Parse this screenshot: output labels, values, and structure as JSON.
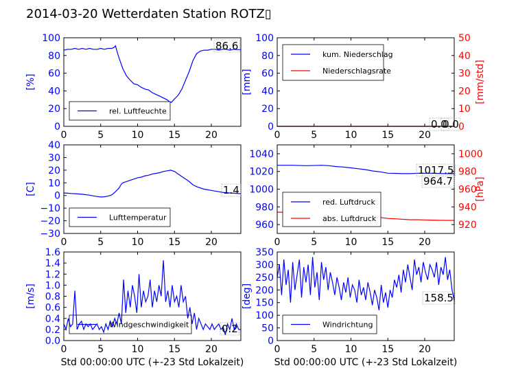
{
  "page": {
    "title": "2014-03-20 Wetterdaten Station ROTZ▯"
  },
  "colors": {
    "blue": "#0000ff",
    "red": "#ff0000",
    "lightblue": "#8080ff",
    "black": "#000000"
  },
  "chart_data": [
    {
      "type": "line",
      "xlabel": "",
      "ylabel": "[%]",
      "xlim": [
        0,
        24
      ],
      "ylim": [
        0,
        100
      ],
      "xticks": [
        "0",
        "5",
        "10",
        "15",
        "20"
      ],
      "yticks": [
        "0",
        "20",
        "40",
        "60",
        "80",
        "100"
      ],
      "legend": {
        "placement": "lower-left",
        "entries": [
          "rel. Luftfeuchte"
        ]
      },
      "last_values": [
        "86.6"
      ],
      "series": [
        {
          "name": "rel. Luftfeuchte",
          "x": [
            0,
            0.5,
            1,
            1.5,
            2,
            2.5,
            3,
            3.5,
            4,
            4.5,
            5,
            5.5,
            6,
            6.5,
            6.8,
            7,
            7.2,
            7.5,
            8,
            8.5,
            9,
            9.5,
            10,
            10.5,
            11,
            11.5,
            12,
            12.5,
            13,
            13.5,
            14,
            14.3,
            14.6,
            15,
            15.5,
            16,
            16.5,
            17,
            17.5,
            18,
            18.5,
            19,
            19.5,
            20,
            20.5,
            21,
            21.5,
            22,
            22.5,
            23,
            23.5,
            24
          ],
          "y": [
            86,
            87,
            87,
            88,
            87,
            88,
            87,
            88,
            87,
            87,
            88,
            87,
            88,
            88,
            89,
            91,
            85,
            77,
            65,
            57,
            52,
            48,
            47,
            44,
            42,
            41,
            38,
            36,
            34,
            32,
            30,
            28,
            27,
            31,
            35,
            42,
            52,
            62,
            74,
            82,
            85,
            86,
            86,
            87,
            87,
            86,
            87,
            87,
            86,
            87,
            86.6,
            86.6
          ]
        }
      ]
    },
    {
      "type": "line",
      "xlabel": "",
      "ylabel": "[mm]",
      "ylabel_right": "[mm/std]",
      "xlim": [
        0,
        24
      ],
      "ylim": [
        0,
        100
      ],
      "ylim_right": [
        0,
        50
      ],
      "xticks": [
        "0",
        "5",
        "10",
        "15",
        "20"
      ],
      "yticks": [
        "0",
        "20",
        "40",
        "60",
        "80",
        "100"
      ],
      "yticks_right": [
        "0",
        "10",
        "20",
        "30",
        "40",
        "50"
      ],
      "legend": {
        "placement": "upper-left",
        "entries": [
          "kum. Niederschlag",
          "Niederschlagsrate"
        ]
      },
      "last_values": [
        "0.0",
        "0.0"
      ],
      "series": [
        {
          "name": "kum. Niederschlag",
          "x": [
            0,
            24
          ],
          "y": [
            0,
            0
          ]
        },
        {
          "name": "Niederschlagsrate",
          "x": [
            0,
            24
          ],
          "y": [
            0,
            0
          ]
        }
      ]
    },
    {
      "type": "line",
      "xlabel": "",
      "ylabel": "[C]",
      "xlim": [
        0,
        24
      ],
      "ylim": [
        -30,
        40
      ],
      "xticks": [
        "0",
        "5",
        "10",
        "15",
        "20"
      ],
      "yticks": [
        "−30",
        "−20",
        "−10",
        "0",
        "10",
        "20",
        "30",
        "40"
      ],
      "legend": {
        "placement": "lower-left",
        "entries": [
          "Lufttemperatur"
        ]
      },
      "last_values": [
        "1.4"
      ],
      "series": [
        {
          "name": "Lufttemperatur",
          "x": [
            0,
            0.5,
            1,
            1.5,
            2,
            2.5,
            3,
            3.5,
            4,
            4.5,
            5,
            5.5,
            6,
            6.5,
            7,
            7.5,
            7.8,
            8,
            8.5,
            9,
            9.5,
            10,
            10.5,
            11,
            11.5,
            12,
            12.5,
            13,
            13.5,
            14,
            14.5,
            15,
            15.5,
            16,
            16.5,
            17,
            17.5,
            18,
            18.5,
            19,
            19.5,
            20,
            20.5,
            21,
            21.5,
            22,
            22.5,
            23,
            23.5,
            24
          ],
          "y": [
            2,
            1.8,
            1.6,
            1.4,
            1.2,
            1,
            0.6,
            0.2,
            -0.3,
            -0.8,
            -1.2,
            -1,
            -0.5,
            0.5,
            3,
            6,
            9,
            10,
            11,
            12,
            13,
            14,
            14.5,
            15.5,
            16,
            17,
            17.5,
            18,
            19,
            19.5,
            20,
            19,
            17,
            15,
            13,
            11,
            8.5,
            7,
            6,
            5,
            4.5,
            4,
            3.5,
            3,
            2.5,
            2.2,
            2,
            1.8,
            1.6,
            1.4
          ]
        }
      ]
    },
    {
      "type": "line",
      "xlabel": "",
      "ylabel": "",
      "ylabel_right": "[hPa]",
      "xlim": [
        0,
        24
      ],
      "ylim": [
        950,
        1050
      ],
      "ylim_right": [
        910,
        1010
      ],
      "xticks": [
        "0",
        "5",
        "10",
        "15",
        "20"
      ],
      "yticks": [
        "960",
        "980",
        "1000",
        "1020",
        "1040"
      ],
      "yticks_right": [
        "920",
        "940",
        "960",
        "980",
        "1000"
      ],
      "legend": {
        "placement": "lower-left",
        "entries": [
          "red. Luftdruck",
          "abs. Luftdruck"
        ]
      },
      "last_values": [
        "1017.5",
        "964.7"
      ],
      "series": [
        {
          "name": "red. Luftdruck",
          "x": [
            0,
            2,
            4,
            6,
            7,
            8,
            9,
            10,
            11,
            12,
            13,
            14,
            15,
            16,
            17,
            18,
            19,
            20,
            21,
            22,
            23,
            24
          ],
          "y": [
            1027,
            1027,
            1026.5,
            1027,
            1026.5,
            1025.5,
            1025,
            1024,
            1023,
            1022,
            1020.5,
            1019.5,
            1018,
            1017.8,
            1017.5,
            1017.5,
            1018,
            1018,
            1018,
            1017.7,
            1017.5,
            1017.5
          ]
        },
        {
          "name": "abs. Luftdruck",
          "x": [
            0,
            2,
            4,
            6,
            7,
            8,
            9,
            10,
            11,
            12,
            13,
            14,
            15,
            16,
            17,
            18,
            19,
            20,
            21,
            22,
            23,
            24
          ],
          "y": [
            974,
            973.8,
            973.5,
            973.5,
            973.2,
            972.8,
            972.5,
            972,
            971,
            970,
            969,
            968,
            967,
            966.5,
            966,
            965.5,
            965.5,
            965.3,
            965,
            964.8,
            964.7,
            964.7
          ]
        }
      ]
    },
    {
      "type": "line",
      "xlabel": "Std 00:00:00 UTC (+-23 Std Lokalzeit)",
      "ylabel": "[m/s]",
      "xlim": [
        0,
        24
      ],
      "ylim": [
        0,
        1.6
      ],
      "xticks": [
        "0",
        "5",
        "10",
        "15",
        "20"
      ],
      "yticks": [
        "0.0",
        "0.2",
        "0.4",
        "0.6",
        "0.8",
        "1.0",
        "1.2",
        "1.4",
        "1.6"
      ],
      "legend": {
        "placement": "lower-left",
        "entries": [
          "Windgeschwindigkeit"
        ]
      },
      "last_values": [
        "0.2"
      ],
      "series": [
        {
          "name": "Windgeschwindigkeit",
          "x": [
            0,
            0.3,
            0.6,
            0.9,
            1.2,
            1.5,
            1.8,
            2.1,
            2.4,
            2.7,
            3,
            3.3,
            3.6,
            3.9,
            4.2,
            4.5,
            4.8,
            5.1,
            5.4,
            5.7,
            6,
            6.3,
            6.6,
            6.9,
            7.2,
            7.5,
            7.8,
            8.1,
            8.4,
            8.7,
            9,
            9.3,
            9.6,
            9.9,
            10.2,
            10.5,
            10.8,
            11.1,
            11.4,
            11.7,
            12,
            12.3,
            12.6,
            12.9,
            13.2,
            13.5,
            13.8,
            14.1,
            14.4,
            14.7,
            15,
            15.3,
            15.6,
            15.9,
            16.2,
            16.5,
            16.8,
            17.1,
            17.4,
            17.7,
            18,
            18.3,
            18.6,
            18.9,
            19.2,
            19.5,
            19.8,
            20.1,
            20.4,
            20.7,
            21,
            21.3,
            21.6,
            21.9,
            22.2,
            22.5,
            22.8,
            23.1,
            23.4,
            23.7,
            24
          ],
          "y": [
            0.3,
            0.2,
            0.4,
            0.25,
            0.3,
            0.9,
            0.2,
            0.3,
            0.35,
            0.2,
            0.3,
            0.25,
            0.3,
            0.2,
            0.25,
            0.3,
            0.2,
            0.25,
            0.15,
            0.3,
            0.2,
            0.35,
            0.25,
            0.4,
            0.3,
            0.5,
            0.3,
            1.1,
            0.5,
            0.9,
            0.6,
            1.0,
            0.8,
            0.5,
            1.2,
            0.6,
            0.9,
            0.7,
            0.8,
            1.1,
            0.6,
            0.9,
            0.7,
            1.0,
            0.8,
            1.45,
            0.7,
            0.9,
            0.6,
            1.0,
            0.7,
            0.8,
            0.6,
            1.0,
            0.7,
            0.8,
            0.4,
            0.6,
            0.3,
            0.5,
            0.2,
            0.4,
            0.3,
            0.2,
            0.3,
            0.25,
            0.2,
            0.3,
            0.2,
            0.25,
            0.3,
            0.2,
            0.25,
            0.1,
            0.3,
            0.2,
            0.4,
            0.2,
            0.3,
            0.2,
            0.2
          ]
        }
      ]
    },
    {
      "type": "line",
      "xlabel": "Std 00:00:00 UTC (+-23 Std Lokalzeit)",
      "ylabel": "[deg]",
      "xlim": [
        0,
        24
      ],
      "ylim": [
        0,
        350
      ],
      "xticks": [
        "0",
        "5",
        "10",
        "15",
        "20"
      ],
      "yticks": [
        "0",
        "50",
        "100",
        "150",
        "200",
        "250",
        "300",
        "350"
      ],
      "legend": {
        "placement": "lower-left",
        "entries": [
          "Windrichtung"
        ]
      },
      "last_values": [
        "158.5"
      ],
      "series": [
        {
          "name": "Windrichtung",
          "x": [
            0,
            0.3,
            0.6,
            0.9,
            1.2,
            1.5,
            1.8,
            2.1,
            2.4,
            2.7,
            3,
            3.3,
            3.6,
            3.9,
            4.2,
            4.5,
            4.8,
            5.1,
            5.4,
            5.7,
            6,
            6.3,
            6.6,
            6.9,
            7.2,
            7.5,
            7.8,
            8.1,
            8.4,
            8.7,
            9,
            9.3,
            9.6,
            9.9,
            10.2,
            10.5,
            10.8,
            11.1,
            11.4,
            11.7,
            12,
            12.3,
            12.6,
            12.9,
            13.2,
            13.5,
            13.8,
            14.1,
            14.4,
            14.7,
            15,
            15.3,
            15.6,
            15.9,
            16.2,
            16.5,
            16.8,
            17.1,
            17.4,
            17.7,
            18,
            18.3,
            18.6,
            18.9,
            19.2,
            19.5,
            19.8,
            20.1,
            20.4,
            20.7,
            21,
            21.3,
            21.6,
            21.9,
            22.2,
            22.5,
            22.8,
            23.1,
            23.4,
            23.7,
            24
          ],
          "y": [
            250,
            300,
            180,
            320,
            220,
            280,
            150,
            310,
            200,
            260,
            320,
            170,
            290,
            230,
            300,
            180,
            330,
            210,
            270,
            160,
            310,
            240,
            290,
            200,
            270,
            230,
            180,
            250,
            210,
            160,
            230,
            190,
            250,
            170,
            220,
            200,
            150,
            240,
            180,
            210,
            160,
            230,
            190,
            140,
            200,
            170,
            120,
            220,
            150,
            190,
            130,
            200,
            170,
            240,
            210,
            260,
            190,
            280,
            230,
            300,
            250,
            200,
            320,
            260,
            290,
            230,
            310,
            270,
            240,
            300,
            280,
            250,
            310,
            220,
            290,
            260,
            330,
            240,
            280,
            200,
            158.5
          ]
        }
      ]
    }
  ]
}
